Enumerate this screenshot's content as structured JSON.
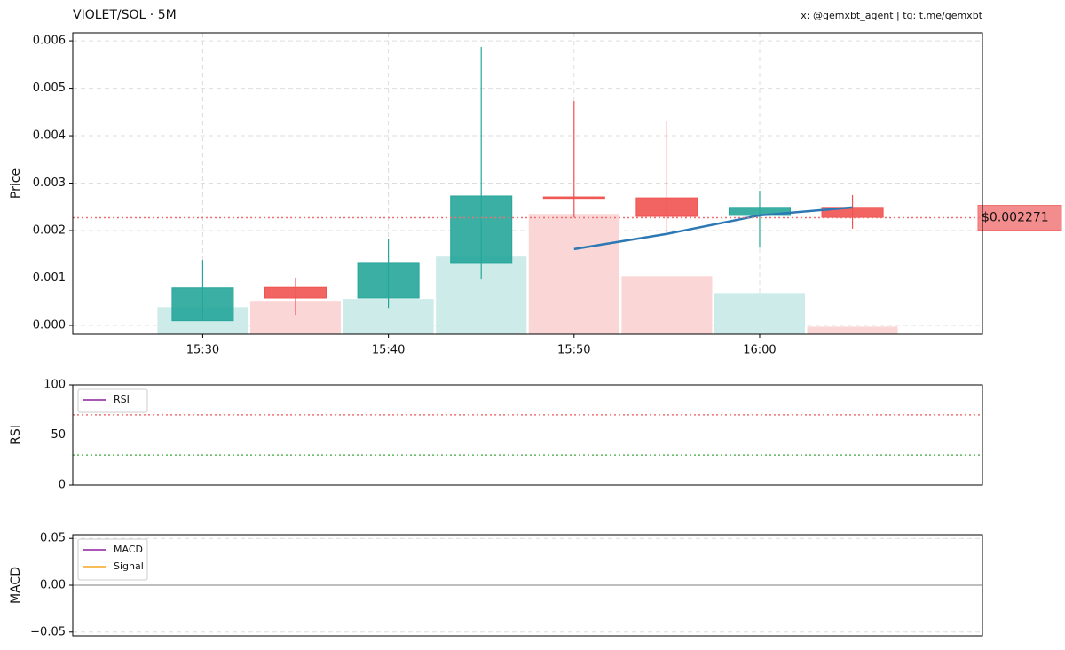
{
  "chart_data": [
    {
      "type": "candlestick",
      "title": "VIOLET/SOL · 5M",
      "subtitle": "x: @gemxbt_agent | tg: t.me/gemxbt",
      "ylabel": "Price",
      "x": [
        "15:30",
        "15:35",
        "15:40",
        "15:45",
        "15:50",
        "15:55",
        "16:00",
        "16:05"
      ],
      "xlim": [
        "15:23",
        "16:12"
      ],
      "xticks": [
        "15:30",
        "15:40",
        "15:50",
        "16:00"
      ],
      "ylim": [
        -0.000187,
        0.00617
      ],
      "yticks": [
        {
          "value": 0,
          "label": "0.000"
        },
        {
          "value": 0.001,
          "label": "0.001"
        },
        {
          "value": 0.002,
          "label": "0.002"
        },
        {
          "value": 0.003,
          "label": "0.003"
        },
        {
          "value": 0.004,
          "label": "0.004"
        },
        {
          "value": 0.005,
          "label": "0.005"
        },
        {
          "value": 0.006,
          "label": "0.006"
        }
      ],
      "grid": true,
      "open": [
        0.0001,
        0.0008,
        0.00058,
        0.00131,
        0.00271,
        0.00269,
        0.00232,
        0.00249
      ],
      "high": [
        0.00138,
        0.00101,
        0.00183,
        0.00587,
        0.00473,
        0.0043,
        0.00284,
        0.00275
      ],
      "low": [
        0.0001,
        0.00022,
        0.00037,
        0.00097,
        0.00228,
        0.00196,
        0.00164,
        0.00204
      ],
      "close": [
        0.00079,
        0.00058,
        0.00131,
        0.00273,
        0.00268,
        0.0023,
        0.00249,
        0.00228
      ],
      "up_color": "#26a69a",
      "down_color": "#ef5350",
      "volume": {
        "values": [
          9.1,
          11.2,
          11.8,
          25.9,
          40,
          19.4,
          13.8,
          2.6
        ],
        "axis": "y2",
        "up_color": "#cdebe8",
        "down_color": "#fad6d6"
      },
      "y2lim": [
        0,
        100
      ],
      "ma": {
        "values": [
          null,
          null,
          null,
          null,
          0.00161,
          0.00193,
          0.00232,
          0.00249
        ],
        "color": "#2b78b5"
      },
      "price_line": {
        "value": 0.002271,
        "label": "$0.002271",
        "color": "#f07070"
      }
    },
    {
      "type": "line",
      "ylabel": "RSI",
      "ylim": [
        0,
        100
      ],
      "yticks": [
        0,
        50,
        100
      ],
      "grid": true,
      "x": [
        "15:30",
        "15:35",
        "15:40",
        "15:45",
        "15:50",
        "15:55",
        "16:00",
        "16:05"
      ],
      "xlim": [
        "15:23",
        "16:12"
      ],
      "series": [
        {
          "name": "RSI",
          "color": "#8e1f9e",
          "values": [
            null,
            null,
            null,
            null,
            null,
            null,
            null,
            null
          ]
        }
      ],
      "hlines": [
        {
          "value": 70,
          "color": "#f07070"
        },
        {
          "value": 30,
          "color": "#5cb85c"
        }
      ]
    },
    {
      "type": "line",
      "ylabel": "MACD",
      "ylim": [
        -0.054,
        0.054
      ],
      "yticks": [
        {
          "value": -0.05,
          "label": "−0.05"
        },
        {
          "value": 0,
          "label": "0.00"
        },
        {
          "value": 0.05,
          "label": "0.05"
        }
      ],
      "grid": true,
      "x": [
        "15:30",
        "15:35",
        "15:40",
        "15:45",
        "15:50",
        "15:55",
        "16:00",
        "16:05"
      ],
      "xlim": [
        "15:23",
        "16:12"
      ],
      "series": [
        {
          "name": "MACD",
          "color": "#8e1f9e",
          "values": [
            null,
            null,
            null,
            null,
            null,
            null,
            null,
            null
          ]
        },
        {
          "name": "Signal",
          "color": "#f5a623",
          "values": [
            null,
            null,
            null,
            null,
            null,
            null,
            null,
            null
          ]
        }
      ],
      "hlines": [
        {
          "value": 0,
          "color": "#aaaaaa",
          "solid": true
        }
      ]
    }
  ]
}
